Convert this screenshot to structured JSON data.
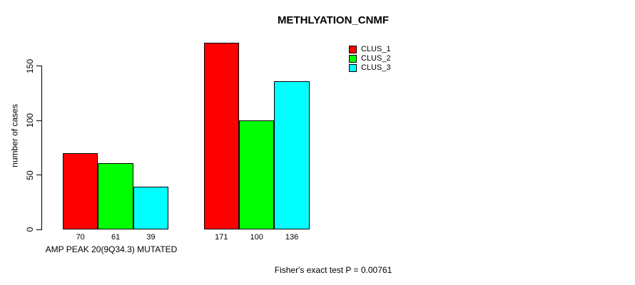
{
  "chart_data": {
    "type": "bar",
    "title": "METHLYATION_CNMF",
    "ylabel": "number of cases",
    "xlabel": "",
    "group_labels": [
      "AMP PEAK 20(9Q34.3) MUTATED",
      ""
    ],
    "annotation": "Fisher's exact test P = 0.00761",
    "yticks": [
      0,
      50,
      100,
      150
    ],
    "ylim": [
      0,
      175
    ],
    "grid": false,
    "legend_position": "top-right",
    "categories": [
      "AMP PEAK 20(9Q34.3) MUTATED",
      ""
    ],
    "series": [
      {
        "name": "CLUS_1",
        "color": "#FF0000",
        "values": [
          70,
          171
        ]
      },
      {
        "name": "CLUS_2",
        "color": "#00FF00",
        "values": [
          61,
          100
        ]
      },
      {
        "name": "CLUS_3",
        "color": "#00FFFF",
        "values": [
          39,
          136
        ]
      }
    ]
  },
  "colors": {
    "background": "#FFFFFF",
    "text": "#000000",
    "axis": "#000000",
    "clus_1": "#FF0000",
    "clus_2": "#00FF00",
    "clus_3": "#00FFFF"
  }
}
